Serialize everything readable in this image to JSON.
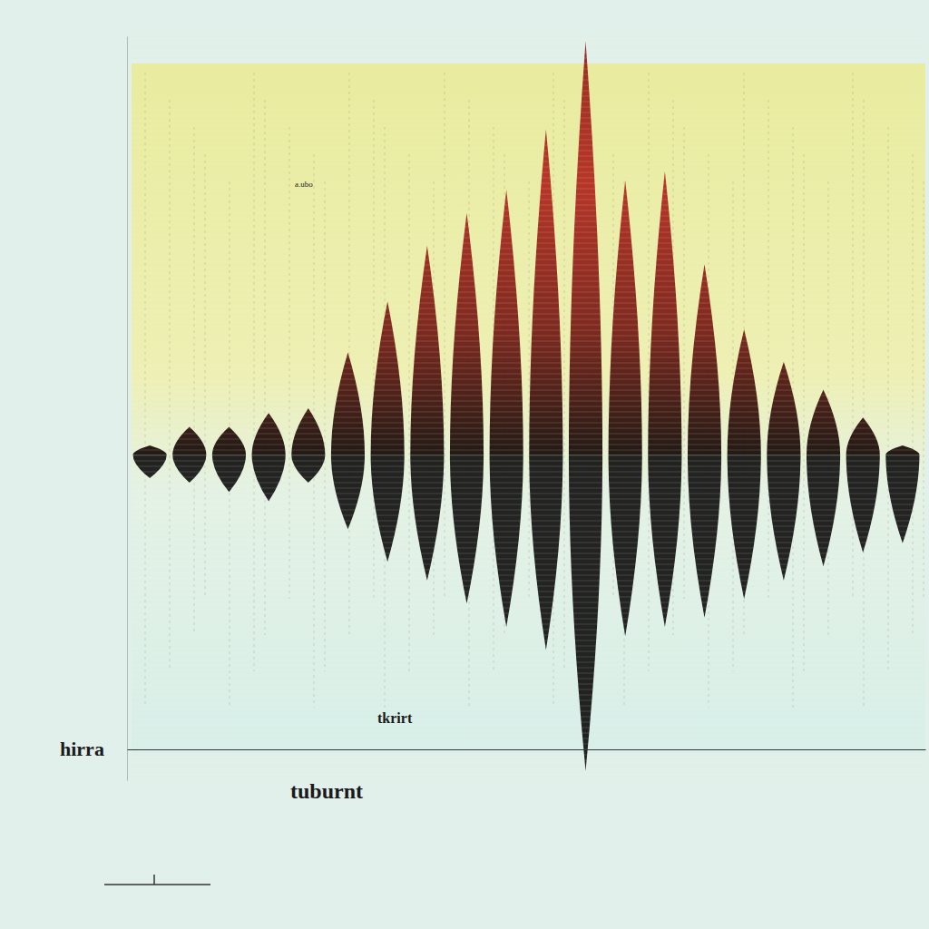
{
  "chart_data": {
    "type": "waveform",
    "annotations": [
      "hirra",
      "tkrirt",
      "tuburnt",
      "a.ubo"
    ],
    "categories": [
      null,
      null,
      null,
      null,
      null,
      null,
      null,
      null,
      null,
      null,
      null,
      null,
      null,
      null,
      null,
      null,
      null,
      null,
      null,
      null
    ],
    "series": [
      {
        "color": "#b3261e",
        "values": [
          2,
          6,
          6,
          9,
          10,
          22,
          33,
          45,
          52,
          57,
          70,
          89,
          59,
          61,
          41,
          27,
          20,
          14,
          8,
          2
        ]
      },
      {
        "color": "#111111",
        "values": [
          -5,
          -6,
          -8,
          -10,
          -6,
          -16,
          -23,
          -27,
          -32,
          -37,
          -42,
          -68,
          -39,
          -37,
          -35,
          -31,
          -27,
          -24,
          -21,
          -19
        ]
      }
    ],
    "ylim": [
      -70,
      90
    ],
    "tick_labels": false
  }
}
